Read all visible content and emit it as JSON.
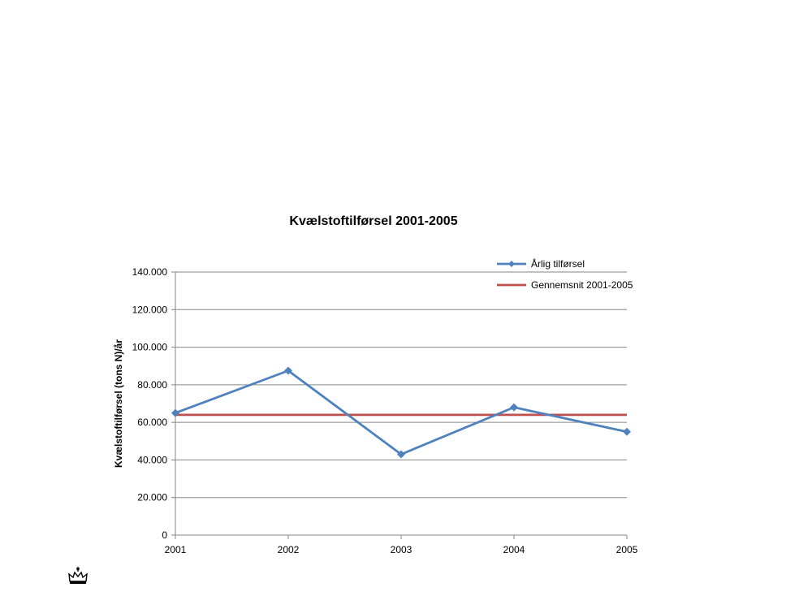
{
  "chart_data": {
    "type": "line",
    "title": "Kvælstoftilførsel 2001-2005",
    "xlabel": "",
    "ylabel": "Kvælstoftilførsel (tons N)/år",
    "categories": [
      "2001",
      "2002",
      "2003",
      "2004",
      "2005"
    ],
    "ylim": [
      0,
      140000
    ],
    "yticks": [
      0,
      20000,
      40000,
      60000,
      80000,
      100000,
      120000,
      140000
    ],
    "ytick_labels": [
      "0",
      "20.000",
      "40.000",
      "60.000",
      "80.000",
      "100.000",
      "120.000",
      "140.000"
    ],
    "grid": true,
    "legend_position": "top-right",
    "series": [
      {
        "name": "Årlig tilførsel",
        "values": [
          65000,
          87500,
          43000,
          68000,
          55000
        ],
        "color": "#4F81BD",
        "marker": "diamond"
      },
      {
        "name": "Gennemsnit 2001-2005",
        "values": [
          64000,
          64000,
          64000,
          64000,
          64000
        ],
        "color": "#C0504D",
        "marker": "none"
      }
    ]
  },
  "logo": {
    "icon": "crown-icon"
  }
}
